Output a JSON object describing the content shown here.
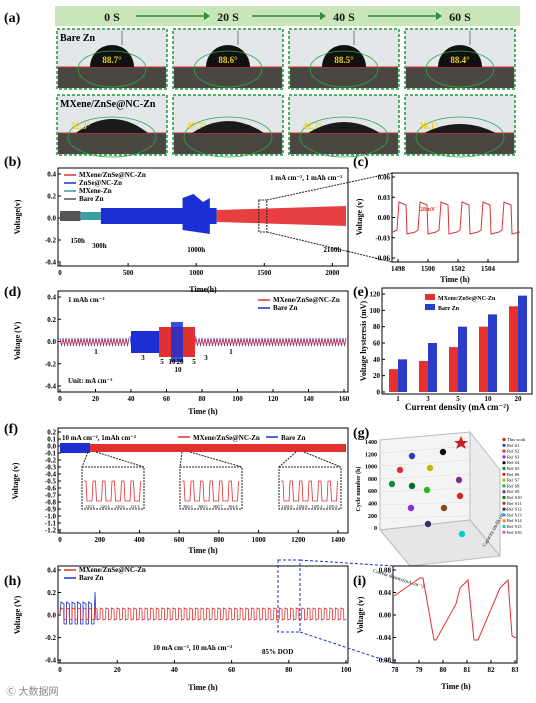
{
  "panel_a": {
    "label": "(a)",
    "times": [
      "0 S",
      "20 S",
      "40 S",
      "60 S"
    ],
    "rows": [
      {
        "name": "Bare Zn",
        "angles": [
          "88.7°",
          "88.6°",
          "88.5°",
          "88.4°"
        ]
      },
      {
        "name": "MXene/ZnSe@NC-Zn",
        "angles": [
          "52.3°",
          "47.7°",
          "42.7°",
          "38.1°"
        ]
      }
    ]
  },
  "panel_b": {
    "label": "(b)",
    "legend": [
      "MXene/ZnSe@NC-Zn",
      "ZnSe@NC-Zn",
      "MXene-Zn",
      "Bare Zn"
    ],
    "condition": "1 mA cm⁻², 1 mAh cm⁻²",
    "annotations": [
      "150h",
      "300h",
      "1000h",
      "2100h"
    ],
    "xlabel": "Time(h)",
    "ylabel": "Voltage(v)",
    "xticks": [
      "0",
      "500",
      "1000",
      "1500",
      "2000"
    ],
    "yticks": [
      "0.4",
      "0.2",
      "0.0",
      "-0.2",
      "-0.4"
    ]
  },
  "panel_c": {
    "label": "(c)",
    "note": "28mV",
    "xlabel": "Time (h)",
    "ylabel": "Voltage (v)",
    "xticks": [
      "1498",
      "1500",
      "1502",
      "1504"
    ],
    "yticks": [
      "0.06",
      "0.03",
      "0.00",
      "-0.03",
      "-0.06"
    ]
  },
  "panel_d": {
    "label": "(d)",
    "condition": "1 mAh cm⁻²",
    "units": "Unit: mA cm⁻²",
    "legend": [
      "MXene/ZnSe@NC-Zn",
      "Bare Zn"
    ],
    "rates": [
      "1",
      "3",
      "5",
      "10",
      "20",
      "10",
      "5",
      "3",
      "1"
    ],
    "xlabel": "Time (h)",
    "ylabel": "Voltage (V)",
    "xticks": [
      "0",
      "20",
      "40",
      "60",
      "80",
      "100",
      "120",
      "140",
      "160"
    ],
    "yticks": [
      "0.4",
      "0.2",
      "0.0",
      "-0.2",
      "-0.4"
    ]
  },
  "panel_e": {
    "label": "(e)",
    "xlabel": "Current density (mA cm⁻²)",
    "ylabel": "Voltage hysteresis (mV)",
    "yticks": [
      "0",
      "20",
      "40",
      "60",
      "80",
      "100",
      "120"
    ],
    "colors": {
      "mxene": "#e8312e",
      "bare": "#2a3cc8"
    }
  },
  "panel_f": {
    "label": "(f)",
    "condition": "10 mA cm⁻², 1mAh cm⁻²",
    "legend": [
      "MXene/ZnSe@NC-Zn",
      "Bare Zn"
    ],
    "xlabel": "Time (h)",
    "ylabel": "Voltage (v)",
    "xticks": [
      "0",
      "200",
      "400",
      "600",
      "800",
      "1000",
      "1200",
      "1400"
    ],
    "yticks": [
      "0.2",
      "0.1",
      "0.0",
      "-0.1",
      "-0.2",
      "-0.3",
      "-0.4",
      "-0.5",
      "-0.6",
      "-0.7",
      "-0.8",
      "-0.9",
      "-1.0",
      "-1.1",
      "-1.2"
    ],
    "insets": [
      {
        "ticks": [
          "220.2",
          "220.4",
          "220.6",
          "221.3"
        ]
      },
      {
        "ticks": [
          "860.3",
          "860.5",
          "860.7",
          "861.8"
        ]
      },
      {
        "ticks": [
          "1284.8",
          "1284.8",
          "1285.4",
          "1285.6"
        ]
      }
    ]
  },
  "panel_g": {
    "label": "(g)",
    "axes": {
      "z": "Cycle number (h)",
      "x": "Current density(mA cm⁻²)",
      "y": "Capacity (mAh cm⁻²)"
    },
    "zticks": [
      "1400",
      "1200",
      "1000",
      "800",
      "600",
      "400",
      "200",
      "0"
    ],
    "legend": [
      "This work",
      "Ref S1",
      "Ref S2",
      "Ref S3",
      "Ref S4",
      "Ref S5",
      "Ref S6",
      "Ref S7",
      "Ref S8",
      "Ref S9",
      "Ref S10",
      "Ref S11",
      "Ref S12",
      "Ref S13",
      "Ref S14",
      "Ref S15",
      "Ref S16"
    ],
    "legend_colors": [
      "#cc2020",
      "#2a3cc8",
      "#e03030",
      "#8a2be2",
      "#111111",
      "#0a8a3a",
      "#e02020",
      "#bbbb00",
      "#22bb22",
      "#7b2d8b",
      "#0a6a2a",
      "#8b4513",
      "#333366",
      "#1e90ff",
      "#ff8c00",
      "#00ced1",
      "#dd55aa"
    ]
  },
  "panel_h": {
    "label": "(h)",
    "legend": [
      "MXene/ZnSe@NC-Zn",
      "Bare Zn"
    ],
    "condition": "10 mA cm⁻², 10 mAh cm⁻²",
    "dod": "85% DOD",
    "xlabel": "Time (h)",
    "ylabel": "Voltage (V)",
    "xticks": [
      "0",
      "20",
      "40",
      "60",
      "80",
      "100"
    ],
    "yticks": [
      "0.4",
      "0.2",
      "0.0",
      "-0.2",
      "-0.4"
    ]
  },
  "panel_i": {
    "label": "(i)",
    "xlabel": "Time (h)",
    "ylabel": "Voltage (v)",
    "xticks": [
      "78",
      "79",
      "80",
      "81",
      "82",
      "83"
    ],
    "yticks": [
      "0.08",
      "0.04",
      "0.00",
      "-0.04",
      "-0.08"
    ]
  },
  "watermark": "Ⓒ 大数据网"
}
